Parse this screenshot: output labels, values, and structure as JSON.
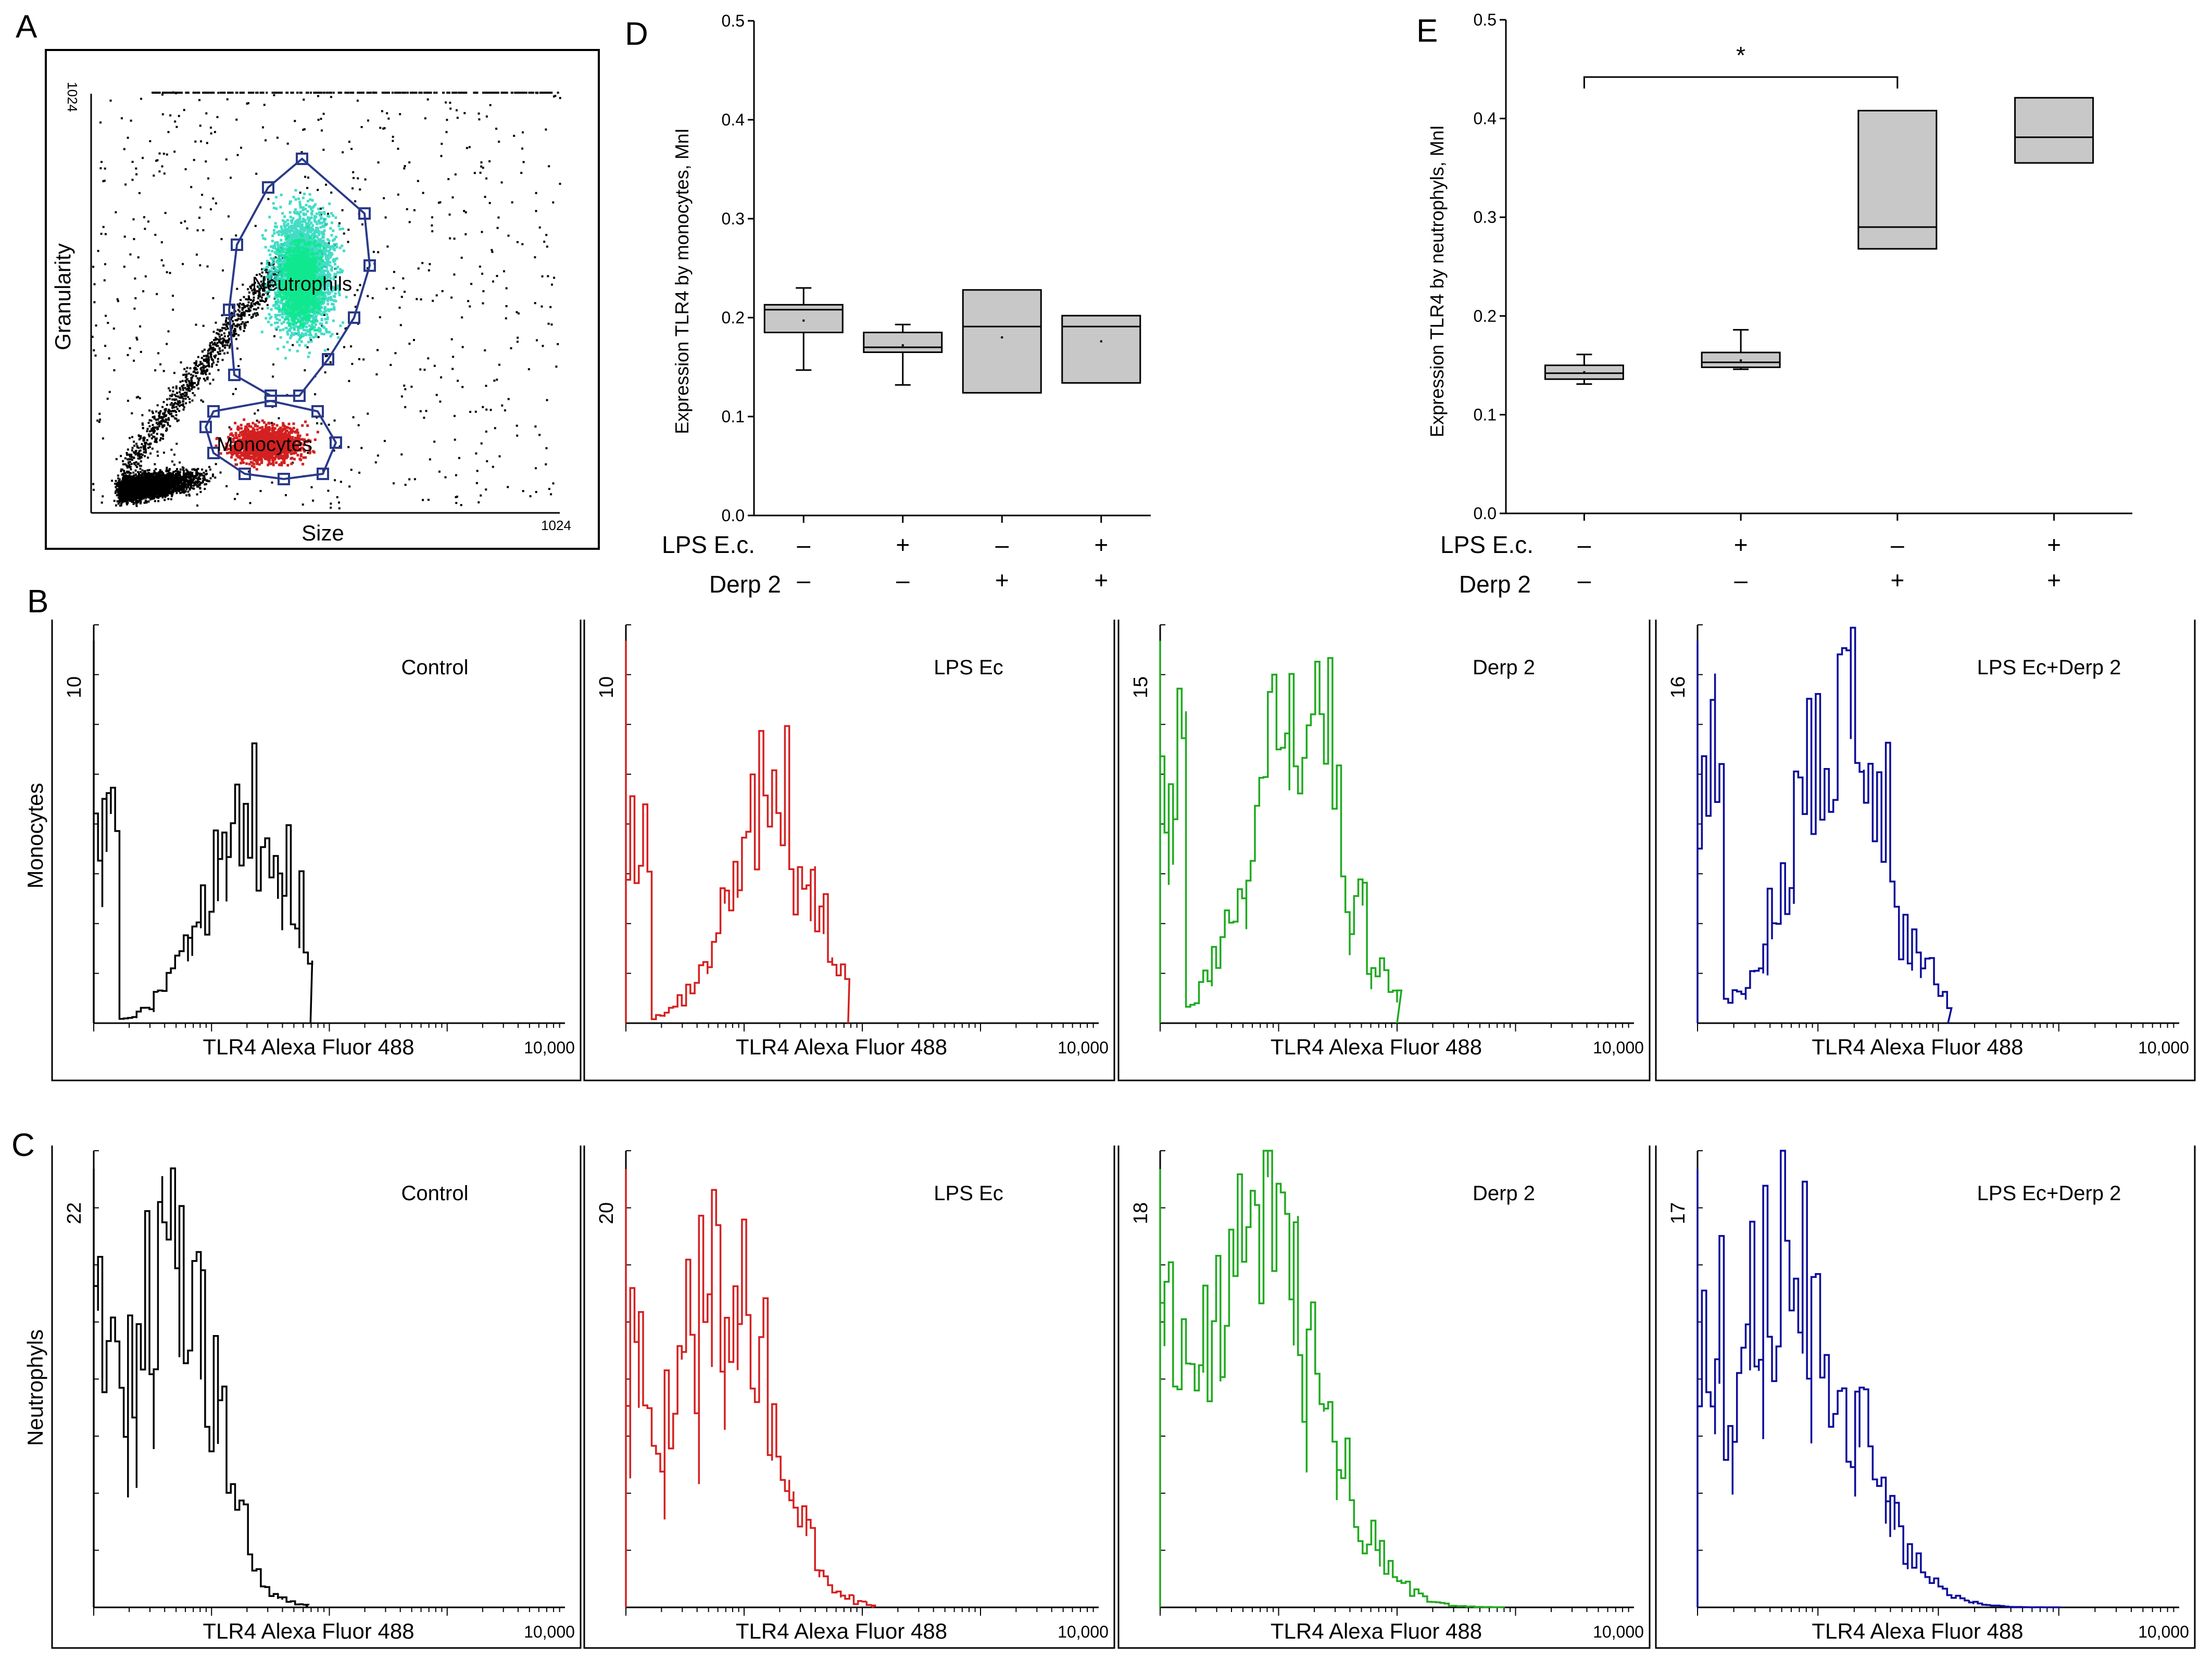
{
  "colors": {
    "black": "#000000",
    "red": "#d42020",
    "green": "#1faa1f",
    "blue": "#0a0a9a",
    "box_fill": "#c8c8c8",
    "cyan": "#30d8c0",
    "teal": "#10e890"
  },
  "panel_letters": {
    "a": "A",
    "b": "B",
    "c": "C",
    "d": "D",
    "e": "E"
  },
  "scatter": {
    "title": "A",
    "xlabel": "Size",
    "ylabel": "Granularity",
    "x_max_label": "1024",
    "y_max_label": "1024",
    "gate_neutrophils": "Neutrophils",
    "gate_monocytes": "Monocytes"
  },
  "treatments": {
    "row1_label": "LPS E.c.",
    "row2_label": "Derp 2",
    "row1_signs": [
      "–",
      "+",
      "–",
      "+"
    ],
    "row2_signs": [
      "–",
      "–",
      "+",
      "+"
    ]
  },
  "chart_data": [
    {
      "id": "D",
      "type": "box",
      "title": "D",
      "ylabel": "Expression TLR4 by monocytes, MnI",
      "ylim": [
        0.0,
        0.5
      ],
      "yticks": [
        "0.0",
        "0.1",
        "0.2",
        "0.3",
        "0.4",
        "0.5"
      ],
      "categories": [
        "Control",
        "LPS E.c.",
        "Derp 2",
        "LPS E.c. + Derp 2"
      ],
      "boxes": [
        {
          "min": 0.147,
          "q1": 0.185,
          "median": 0.208,
          "q3": 0.213,
          "max": 0.23,
          "mean": 0.197
        },
        {
          "min": 0.132,
          "q1": 0.165,
          "median": 0.17,
          "q3": 0.185,
          "max": 0.193,
          "mean": 0.172
        },
        {
          "min": null,
          "q1": 0.124,
          "median": 0.191,
          "q3": 0.228,
          "max": null,
          "mean": 0.18
        },
        {
          "min": null,
          "q1": 0.134,
          "median": 0.191,
          "q3": 0.202,
          "max": null,
          "mean": 0.176
        }
      ]
    },
    {
      "id": "E",
      "type": "box",
      "title": "E",
      "ylabel": "Expression TLR4 by neutrophyls, MnI",
      "ylim": [
        0.0,
        0.5
      ],
      "yticks": [
        "0.0",
        "0.1",
        "0.2",
        "0.3",
        "0.4",
        "0.5"
      ],
      "categories": [
        "Control",
        "LPS E.c.",
        "Derp 2",
        "LPS E.c. + Derp 2"
      ],
      "boxes": [
        {
          "min": 0.131,
          "q1": 0.136,
          "median": 0.142,
          "q3": 0.15,
          "max": 0.161,
          "mean": 0.143
        },
        {
          "min": 0.146,
          "q1": 0.148,
          "median": 0.153,
          "q3": 0.163,
          "max": 0.186,
          "mean": 0.155
        },
        {
          "min": null,
          "q1": 0.268,
          "median": 0.29,
          "q3": 0.408,
          "max": null,
          "mean": null
        },
        {
          "min": null,
          "q1": 0.355,
          "median": 0.381,
          "q3": 0.421,
          "max": null,
          "mean": null
        }
      ],
      "significance": {
        "from": 0,
        "to": 2,
        "label": "*"
      }
    },
    {
      "id": "B",
      "type": "histogram",
      "title": "B",
      "row_label": "Monocytes",
      "xlabel": "TLR4 Alexa Fluor 488",
      "x_max_label": "10,000",
      "panels": [
        {
          "label": "Control",
          "ymax_label": "10",
          "ymax": 10,
          "color": "black",
          "peak": 0.35,
          "spread": 0.22,
          "tail": 0.46,
          "top": 0.7
        },
        {
          "label": "LPS Ec",
          "ymax_label": "10",
          "ymax": 10,
          "color": "red",
          "peak": 0.32,
          "spread": 0.2,
          "tail": 0.47,
          "top": 0.72
        },
        {
          "label": "Derp 2",
          "ymax_label": "15",
          "ymax": 15,
          "color": "green",
          "peak": 0.3,
          "spread": 0.22,
          "tail": 0.5,
          "top": 0.92
        },
        {
          "label": "LPS Ec+Derp 2",
          "ymax_label": "16",
          "ymax": 16,
          "color": "blue",
          "peak": 0.3,
          "spread": 0.22,
          "tail": 0.52,
          "top": 0.92
        }
      ]
    },
    {
      "id": "C",
      "type": "histogram",
      "title": "C",
      "row_label": "Neutrophyls",
      "xlabel": "TLR4 Alexa Fluor 488",
      "x_max_label": "10,000",
      "panels": [
        {
          "label": "Control",
          "ymax_label": "22",
          "ymax": 22,
          "color": "black",
          "peak": 0.16,
          "spread": 0.2,
          "tail": 0.45,
          "top": 0.92
        },
        {
          "label": "LPS Ec",
          "ymax_label": "20",
          "ymax": 20,
          "color": "red",
          "peak": 0.2,
          "spread": 0.22,
          "tail": 0.52,
          "top": 0.86
        },
        {
          "label": "Derp 2",
          "ymax_label": "18",
          "ymax": 18,
          "color": "green",
          "peak": 0.2,
          "spread": 0.28,
          "tail": 0.72,
          "top": 0.9
        },
        {
          "label": "LPS Ec+Derp 2",
          "ymax_label": "17",
          "ymax": 17,
          "color": "blue",
          "peak": 0.18,
          "spread": 0.28,
          "tail": 0.75,
          "top": 0.9
        }
      ]
    }
  ]
}
